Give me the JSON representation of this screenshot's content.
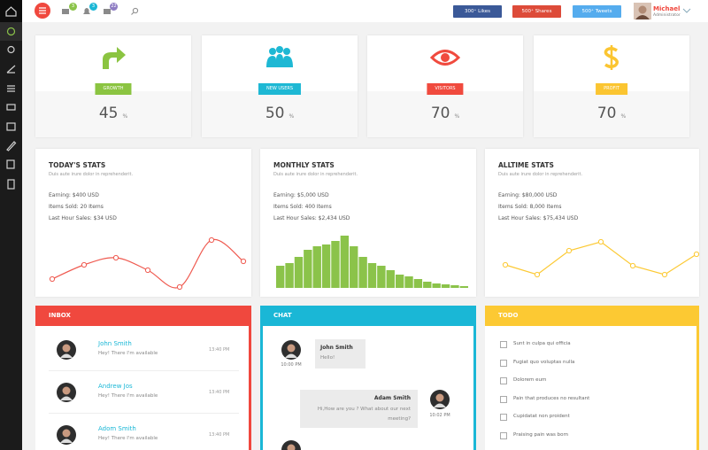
{
  "topbar": {
    "badges": [
      3,
      3,
      22
    ],
    "social": [
      "300⁺ Likes",
      "500⁺ Shares",
      "500⁺ Tweets"
    ],
    "user": {
      "name": "Michael",
      "role": "Administrator"
    }
  },
  "stat_cards": [
    {
      "label": "GROWTH",
      "value": 45,
      "unit": "%"
    },
    {
      "label": "NEW USERS",
      "value": 50,
      "unit": "%"
    },
    {
      "label": "VISITORS",
      "value": 70,
      "unit": "%"
    },
    {
      "label": "PROFIT",
      "value": 70,
      "unit": "%"
    }
  ],
  "stats_panels": [
    {
      "title": "TODAY'S STATS",
      "subtitle": "Duis aute irure dolor in reprehenderit.",
      "lines": [
        "Earning: $400 USD",
        "Items Sold: 20 Items",
        "Last Hour Sales: $34 USD"
      ],
      "chart": {
        "type": "line",
        "smooth": true,
        "color": "#ef5a50",
        "values": [
          15,
          31,
          39,
          25,
          6,
          59,
          35
        ]
      }
    },
    {
      "title": "MONTHLY STATS",
      "subtitle": "Duis aute irure dolor in reprehenderit.",
      "lines": [
        "Earning: $5,000 USD",
        "Items Sold: 400 Items",
        "Last Hour Sales: $2,434 USD"
      ],
      "chart": {
        "type": "bar",
        "color": "#8bc34a",
        "values": [
          25,
          28,
          35,
          43,
          47,
          49,
          53,
          59,
          47,
          35,
          28,
          25,
          20,
          15,
          13,
          10,
          7,
          5,
          4,
          3,
          2
        ]
      }
    },
    {
      "title": "ALLTIME STATS",
      "subtitle": "Duis aute irure dolor in reprehenderit.",
      "lines": [
        "Earning: $80,000 USD",
        "Items Sold: 8,000 Items",
        "Last Hour Sales: $75,434 USD"
      ],
      "chart": {
        "type": "line",
        "smooth": false,
        "color": "#fcc933",
        "values": [
          31,
          20,
          47,
          57,
          30,
          20,
          43
        ]
      }
    }
  ],
  "inbox": {
    "title": "INBOX",
    "messages": [
      {
        "name": "John Smith",
        "text": "Hey! There I'm available",
        "time": "13:40 PM"
      },
      {
        "name": "Andrew Jos",
        "text": "Hey! There I'm available",
        "time": "13:40 PM"
      },
      {
        "name": "Adom Smith",
        "text": "Hey! There I'm available",
        "time": "13:40 PM"
      }
    ]
  },
  "chat": {
    "title": "CHAT",
    "messages": [
      {
        "name": "John Smith",
        "text": "Hello!",
        "time": "10:00 PM"
      },
      {
        "name": "Adam Smith",
        "text": "Hi,How are you ? What about our next meeting?",
        "time": "10:02 PM"
      }
    ]
  },
  "todo": {
    "title": "TODO",
    "items": [
      "Sunt in culpa qui officia",
      "Fugiat quo voluptas nulla",
      "Dolorem eum",
      "Pain that produces no resultant",
      "Cupidatat non proident",
      "Praising pain was born"
    ]
  }
}
